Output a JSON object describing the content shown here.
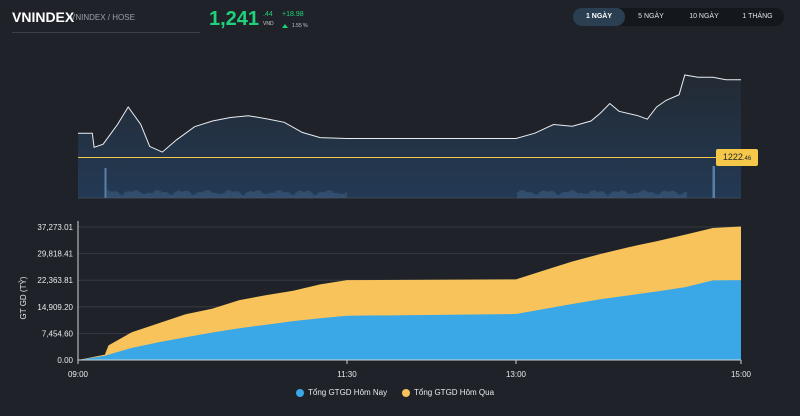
{
  "header": {
    "title": "VNINDEX",
    "subtitle": "VNINDEX / HOSE",
    "price_int": "1,241",
    "price_dec": ".44",
    "price_unit": "VND",
    "change": "+18.98",
    "change_pct": "1.55 %"
  },
  "tabs": [
    {
      "label": "1 NGÀY",
      "active": true
    },
    {
      "label": "5 NGÀY",
      "active": false
    },
    {
      "label": "10 NGÀY",
      "active": false
    },
    {
      "label": "1 THÁNG",
      "active": false
    }
  ],
  "colors": {
    "today": "#3aa7e6",
    "yesterday": "#f8c35a",
    "reference_line": "#f6c84a",
    "price_up": "#1fd17a"
  },
  "reference_label": "1222",
  "reference_label_dec": ".46",
  "chart_data": [
    {
      "type": "line",
      "series": [
        {
          "values": [
            {
              "t": "09:00",
              "v": 1228.0
            },
            {
              "t": "09:08",
              "v": 1228.0
            },
            {
              "t": "09:09",
              "v": 1224.8
            },
            {
              "t": "09:14",
              "v": 1225.5
            },
            {
              "t": "09:22",
              "v": 1230.0
            },
            {
              "t": "09:28",
              "v": 1234.0
            },
            {
              "t": "09:35",
              "v": 1230.0
            },
            {
              "t": "09:40",
              "v": 1225.0
            },
            {
              "t": "09:47",
              "v": 1223.7
            },
            {
              "t": "09:55",
              "v": 1226.5
            },
            {
              "t": "10:05",
              "v": 1229.5
            },
            {
              "t": "10:15",
              "v": 1230.8
            },
            {
              "t": "10:25",
              "v": 1231.6
            },
            {
              "t": "10:35",
              "v": 1232.0
            },
            {
              "t": "10:45",
              "v": 1231.3
            },
            {
              "t": "10:55",
              "v": 1230.5
            },
            {
              "t": "11:05",
              "v": 1228.2
            },
            {
              "t": "11:15",
              "v": 1227.0
            },
            {
              "t": "11:30",
              "v": 1226.8
            },
            {
              "t": "13:00",
              "v": 1226.8
            },
            {
              "t": "13:10",
              "v": 1228.0
            },
            {
              "t": "13:20",
              "v": 1230.0
            },
            {
              "t": "13:30",
              "v": 1229.6
            },
            {
              "t": "13:40",
              "v": 1230.8
            },
            {
              "t": "13:45",
              "v": 1232.6
            },
            {
              "t": "13:50",
              "v": 1234.8
            },
            {
              "t": "13:55",
              "v": 1233.0
            },
            {
              "t": "14:05",
              "v": 1232.0
            },
            {
              "t": "14:10",
              "v": 1231.2
            },
            {
              "t": "14:15",
              "v": 1234.0
            },
            {
              "t": "14:20",
              "v": 1235.5
            },
            {
              "t": "14:27",
              "v": 1236.8
            },
            {
              "t": "14:30",
              "v": 1241.3
            },
            {
              "t": "14:37",
              "v": 1240.8
            },
            {
              "t": "14:45",
              "v": 1240.8
            },
            {
              "t": "14:52",
              "v": 1240.2
            },
            {
              "t": "15:00",
              "v": 1240.2
            }
          ]
        }
      ],
      "reference": 1222.46
    },
    {
      "type": "area",
      "ylabel": "GT GD (TỶ)",
      "x_ticks": [
        "09:00",
        "11:30",
        "13:00",
        "15:00"
      ],
      "y_ticks": [
        "37,273.01",
        "29,818.41",
        "22,363.81",
        "14,909.20",
        "7,454.60",
        "0.00"
      ],
      "ylim": [
        0,
        37273.01
      ],
      "legend": "bottom-center",
      "series": [
        {
          "name": "Tổng GTGD Hôm Nay",
          "values": [
            {
              "t": "09:00",
              "v": 0
            },
            {
              "t": "09:15",
              "v": 1200
            },
            {
              "t": "09:17",
              "v": 1500
            },
            {
              "t": "09:30",
              "v": 3400
            },
            {
              "t": "09:45",
              "v": 5000
            },
            {
              "t": "10:00",
              "v": 6400
            },
            {
              "t": "10:15",
              "v": 7700
            },
            {
              "t": "10:30",
              "v": 8900
            },
            {
              "t": "10:45",
              "v": 9900
            },
            {
              "t": "11:00",
              "v": 10900
            },
            {
              "t": "11:15",
              "v": 11700
            },
            {
              "t": "11:30",
              "v": 12400
            },
            {
              "t": "13:00",
              "v": 12900
            },
            {
              "t": "13:15",
              "v": 14300
            },
            {
              "t": "13:30",
              "v": 15700
            },
            {
              "t": "13:45",
              "v": 17000
            },
            {
              "t": "14:00",
              "v": 18100
            },
            {
              "t": "14:15",
              "v": 19200
            },
            {
              "t": "14:30",
              "v": 20400
            },
            {
              "t": "14:45",
              "v": 22300
            },
            {
              "t": "15:00",
              "v": 22400
            }
          ]
        },
        {
          "name": "Tổng GTGD Hôm Qua",
          "values": [
            {
              "t": "09:00",
              "v": 0
            },
            {
              "t": "09:15",
              "v": 1500
            },
            {
              "t": "09:17",
              "v": 4100
            },
            {
              "t": "09:30",
              "v": 7800
            },
            {
              "t": "09:45",
              "v": 10300
            },
            {
              "t": "10:00",
              "v": 12800
            },
            {
              "t": "10:15",
              "v": 14400
            },
            {
              "t": "10:30",
              "v": 16800
            },
            {
              "t": "10:45",
              "v": 18200
            },
            {
              "t": "11:00",
              "v": 19400
            },
            {
              "t": "11:15",
              "v": 21200
            },
            {
              "t": "11:30",
              "v": 22400
            },
            {
              "t": "13:00",
              "v": 22600
            },
            {
              "t": "13:15",
              "v": 25100
            },
            {
              "t": "13:30",
              "v": 27600
            },
            {
              "t": "13:45",
              "v": 29700
            },
            {
              "t": "14:00",
              "v": 31600
            },
            {
              "t": "14:15",
              "v": 33300
            },
            {
              "t": "14:30",
              "v": 35100
            },
            {
              "t": "14:45",
              "v": 37000
            },
            {
              "t": "15:00",
              "v": 37400
            }
          ]
        }
      ]
    }
  ]
}
